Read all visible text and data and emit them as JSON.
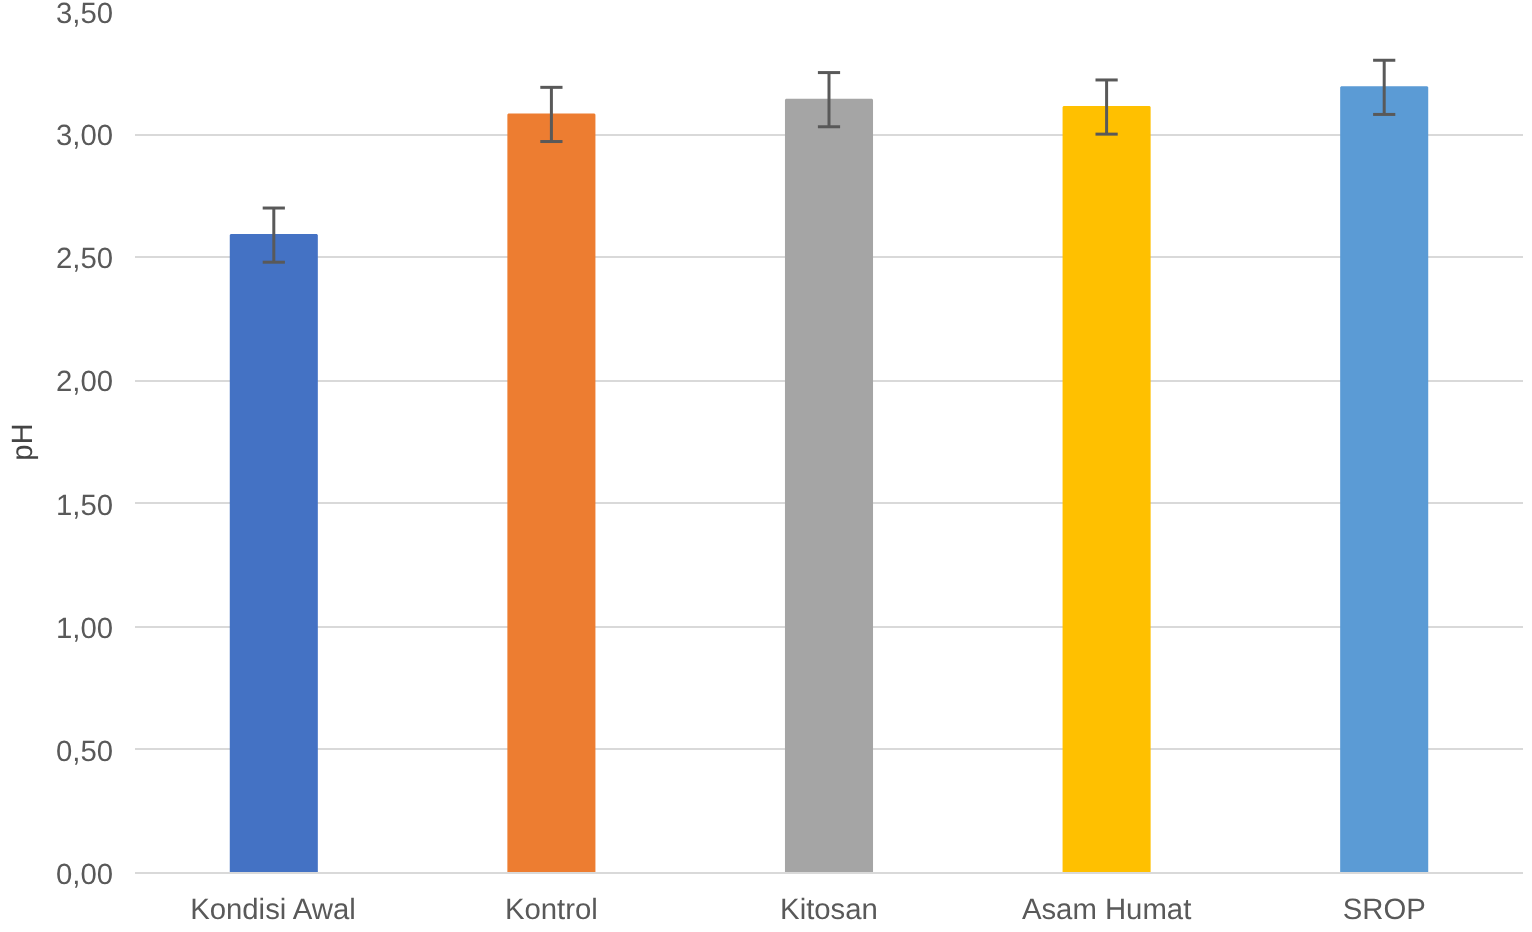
{
  "chart_data": {
    "type": "bar",
    "ylabel": "pH",
    "categories": [
      "Kondisi Awal",
      "Kontrol",
      "Kitosan",
      "Asam Humat",
      "SROP"
    ],
    "values": [
      2.59,
      3.08,
      3.14,
      3.11,
      3.19
    ],
    "errors": [
      0.11,
      0.11,
      0.11,
      0.11,
      0.11
    ],
    "colors": [
      "#4472c4",
      "#ed7d31",
      "#a5a5a5",
      "#ffc000",
      "#5b9bd5"
    ],
    "ylim": [
      0,
      3.5
    ],
    "yticks": [
      {
        "value": 0,
        "label": "0,00"
      },
      {
        "value": 0.5,
        "label": "0,50"
      },
      {
        "value": 1,
        "label": "1,00"
      },
      {
        "value": 1.5,
        "label": "1,50"
      },
      {
        "value": 2,
        "label": "2,00"
      },
      {
        "value": 2.5,
        "label": "2,50"
      },
      {
        "value": 3,
        "label": "3,00"
      },
      {
        "value": 3.5,
        "label": "3,50"
      }
    ],
    "grid": "y"
  }
}
